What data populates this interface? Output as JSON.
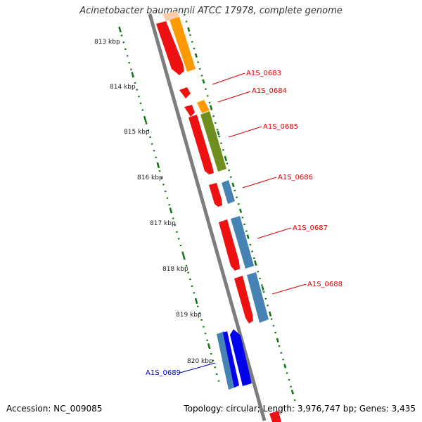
{
  "title": "Acinetobacter baumannii ATCC 17978, complete genome",
  "footer": {
    "accession": "Accession: NC_009085",
    "summary": "Topology: circular; Length: 3,976,747 bp; Genes: 3,435"
  },
  "colors": {
    "cds_red": "#ee1111",
    "orange": "#ff9900",
    "olive": "#6e8f1e",
    "steel_blue": "#4682b4",
    "blue": "#0000ee",
    "backbone": "#808080",
    "tick_green": "#117711",
    "label_red": "#dd0000",
    "label_blue": "#0000cc"
  },
  "ruler": {
    "ticks": [
      {
        "label": "813 kbp"
      },
      {
        "label": "814 kbp"
      },
      {
        "label": "815 kbp"
      },
      {
        "label": "816 kbp"
      },
      {
        "label": "817 kbp"
      },
      {
        "label": "818 kbp"
      },
      {
        "label": "819 kbp"
      },
      {
        "label": "820 kbp"
      }
    ]
  },
  "gene_labels": [
    {
      "text": "A1S_0683",
      "color": "label_red"
    },
    {
      "text": "A1S_0684",
      "color": "label_red"
    },
    {
      "text": "A1S_0685",
      "color": "label_red"
    },
    {
      "text": "A1S_0686",
      "color": "label_red"
    },
    {
      "text": "A1S_0687",
      "color": "label_red"
    },
    {
      "text": "A1S_0688",
      "color": "label_red"
    },
    {
      "text": "A1S_0689",
      "color": "label_blue"
    }
  ]
}
